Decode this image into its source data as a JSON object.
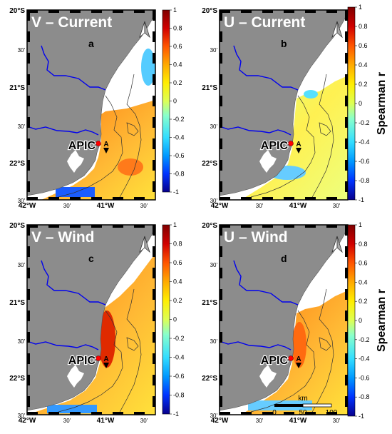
{
  "figure": {
    "colorbar": {
      "label": "Spearman r",
      "ticks": [
        "1",
        "0.8",
        "0.6",
        "0.4",
        "0.2",
        "0",
        "-0.2",
        "-0.4",
        "-0.6",
        "-0.8",
        "-1"
      ],
      "colors": [
        "#08008c",
        "#0033ff",
        "#0099ff",
        "#33ddff",
        "#88ffcc",
        "#ddff55",
        "#ffee00",
        "#ffaa00",
        "#ff5500",
        "#d00000",
        "#800000"
      ]
    },
    "lat_labels": [
      "20°S",
      "30'",
      "21°S",
      "30'",
      "22°S",
      "30'"
    ],
    "lon_labels": [
      "42°W",
      "30'",
      "41°W",
      "30'"
    ],
    "station_label": "APIC",
    "buoy_label": "A",
    "panels": [
      {
        "title": "V – Current",
        "letter": "a"
      },
      {
        "title": "U – Current",
        "letter": "b"
      },
      {
        "title": "V – Wind",
        "letter": "c"
      },
      {
        "title": "U – Wind",
        "letter": "d"
      }
    ],
    "scalebar": {
      "unit": "km",
      "ticks": [
        "0",
        "50",
        "100"
      ]
    },
    "colors": {
      "land": "#8c8c8c",
      "no_data": "#ffffff",
      "river": "#0000ee",
      "station": "#ff0000",
      "frame": "#000000"
    }
  }
}
